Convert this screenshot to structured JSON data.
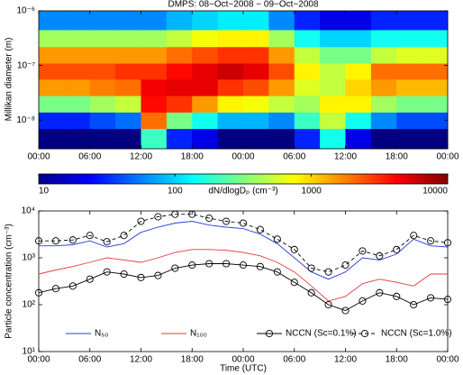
{
  "chart_data": [
    {
      "type": "heatmap",
      "title": "DMPS: 08−Oct−2008 − 09−Oct−2008",
      "ylabel": "Millikan diameter (m)",
      "log_y": true,
      "xlim": [
        0,
        48
      ],
      "ylim": [
        3e-09,
        1e-06
      ],
      "xticks": [
        {
          "value": 0,
          "label": "00:00"
        },
        {
          "value": 6,
          "label": "06:00"
        },
        {
          "value": 12,
          "label": "12:00"
        },
        {
          "value": 18,
          "label": "18:00"
        },
        {
          "value": 24,
          "label": "00:00"
        },
        {
          "value": 30,
          "label": "06:00"
        },
        {
          "value": 36,
          "label": "12:00"
        },
        {
          "value": 42,
          "label": "18:00"
        },
        {
          "value": 48,
          "label": "00:00"
        }
      ],
      "yticks": [
        {
          "value": 1e-08,
          "label": "10⁻⁸"
        },
        {
          "value": 1e-07,
          "label": "10⁻⁷"
        },
        {
          "value": 1e-06,
          "label": "10⁻⁶"
        }
      ],
      "x_edges": [
        0,
        3,
        6,
        9,
        12,
        15,
        18,
        21,
        24,
        27,
        30,
        33,
        36,
        39,
        42,
        45,
        48
      ],
      "y_edges": [
        3e-09,
        7e-09,
        1.4e-08,
        2.8e-08,
        5.6e-08,
        1.1e-07,
        2.2e-07,
        4.5e-07,
        1e-06
      ],
      "z": [
        [
          10,
          10,
          10,
          10,
          200,
          30,
          20,
          10,
          10,
          10,
          30,
          150,
          20,
          10,
          10,
          10
        ],
        [
          30,
          30,
          40,
          50,
          2000,
          300,
          150,
          80,
          80,
          60,
          200,
          500,
          150,
          60,
          40,
          40
        ],
        [
          300,
          300,
          400,
          500,
          4000,
          3000,
          1500,
          800,
          700,
          500,
          400,
          800,
          800,
          400,
          300,
          300
        ],
        [
          1500,
          1500,
          1800,
          2000,
          4500,
          5000,
          5000,
          3000,
          2500,
          1500,
          600,
          500,
          1000,
          1500,
          1200,
          1200
        ],
        [
          2500,
          2500,
          2500,
          3000,
          3000,
          4000,
          5000,
          6000,
          5000,
          2500,
          800,
          500,
          800,
          2000,
          2000,
          2000
        ],
        [
          1500,
          1500,
          1500,
          1500,
          1500,
          2000,
          2500,
          3000,
          3000,
          1500,
          500,
          300,
          300,
          500,
          600,
          600
        ],
        [
          400,
          400,
          400,
          400,
          400,
          500,
          700,
          800,
          800,
          400,
          150,
          100,
          100,
          150,
          150,
          150
        ],
        [
          60,
          60,
          60,
          60,
          60,
          80,
          100,
          120,
          120,
          60,
          30,
          20,
          20,
          30,
          30,
          30
        ]
      ],
      "colorbar_label": "dN/dlogDₚ (cm⁻³)",
      "clim": [
        10,
        10000
      ],
      "cticks": [
        10,
        100,
        1000,
        10000
      ],
      "colormap": "jet"
    },
    {
      "type": "line",
      "xlabel": "Time (UTC)",
      "ylabel": "Particle concentration (cm⁻³)",
      "log_y": true,
      "xlim": [
        0,
        48
      ],
      "ylim": [
        10,
        10000
      ],
      "legend": "lower center",
      "xticks": [
        {
          "value": 0,
          "label": "00:00"
        },
        {
          "value": 6,
          "label": "06:00"
        },
        {
          "value": 12,
          "label": "12:00"
        },
        {
          "value": 18,
          "label": "18:00"
        },
        {
          "value": 24,
          "label": "00:00"
        },
        {
          "value": 30,
          "label": "06:00"
        },
        {
          "value": 36,
          "label": "12:00"
        },
        {
          "value": 42,
          "label": "18:00"
        },
        {
          "value": 48,
          "label": "00:00"
        }
      ],
      "yticks": [
        {
          "value": 10,
          "label": "10¹"
        },
        {
          "value": 100,
          "label": "10²"
        },
        {
          "value": 1000,
          "label": "10³"
        },
        {
          "value": 10000,
          "label": "10⁴"
        }
      ],
      "x": [
        0,
        2,
        4,
        6,
        8,
        10,
        12,
        14,
        16,
        18,
        20,
        22,
        24,
        26,
        28,
        30,
        32,
        34,
        36,
        38,
        40,
        42,
        44,
        46,
        48
      ],
      "series": [
        {
          "name": "N₅₀",
          "color": "#2b3fd6",
          "dash": false,
          "marker": false,
          "values": [
            1800,
            1800,
            1900,
            2300,
            1700,
            2000,
            3500,
            4500,
            5500,
            6000,
            5000,
            4500,
            4200,
            3200,
            2000,
            1000,
            500,
            350,
            500,
            1000,
            900,
            1200,
            2500,
            1800,
            1700
          ]
        },
        {
          "name": "N₁₀₀",
          "color": "#e8373a",
          "dash": false,
          "marker": false,
          "values": [
            450,
            550,
            650,
            800,
            1000,
            900,
            800,
            1000,
            1300,
            1500,
            1500,
            1450,
            1300,
            1100,
            800,
            500,
            250,
            120,
            150,
            280,
            350,
            300,
            250,
            450,
            450
          ]
        },
        {
          "name": "NCCN (Sc=0.1%)",
          "color": "#000000",
          "dash": false,
          "marker": true,
          "values": [
            180,
            220,
            250,
            350,
            500,
            450,
            380,
            420,
            600,
            700,
            750,
            750,
            700,
            650,
            500,
            300,
            180,
            100,
            75,
            120,
            180,
            150,
            100,
            140,
            130
          ]
        },
        {
          "name": "NCCN (Sc=1.0%)",
          "color": "#000000",
          "dash": true,
          "marker": true,
          "values": [
            2300,
            2300,
            2400,
            3000,
            2200,
            3000,
            6000,
            7500,
            8500,
            8500,
            7000,
            6000,
            5500,
            4000,
            2500,
            1500,
            600,
            500,
            700,
            1400,
            1100,
            1500,
            3000,
            2300,
            2100
          ]
        }
      ]
    }
  ]
}
